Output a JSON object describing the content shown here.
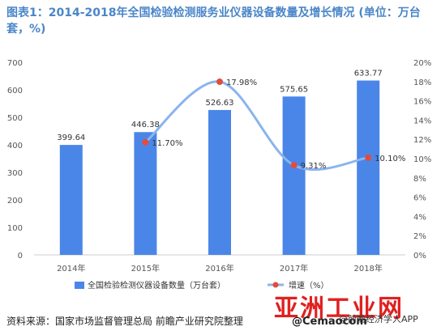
{
  "title": "图表1：2014-2018年全国检验检测服务业仪器设备数量及增长情况 (单位：万台套，%)",
  "source": "资料来源：国家市场监督管理总局 前瞻产业研究院整理",
  "watermark": {
    "logo": "亚洲工业网",
    "url": "@Cemaocom",
    "app": "@前瞻经济学人APP"
  },
  "colors": {
    "bar": "#4a86e8",
    "line": "#8ab4ee",
    "marker": "#e34c3c",
    "title": "#4a86c8"
  },
  "chart_data": {
    "type": "bar",
    "categories": [
      "2014年",
      "2015年",
      "2016年",
      "2017年",
      "2018年"
    ],
    "series": [
      {
        "name": "全国检验检测仪器设备数量（万台套）",
        "type": "bar",
        "axis": "left",
        "values": [
          399.64,
          446.38,
          526.63,
          575.65,
          633.77
        ],
        "labels": [
          "399.64",
          "446.38",
          "526.63",
          "575.65",
          "633.77"
        ]
      },
      {
        "name": "增速（%）",
        "type": "line",
        "axis": "right",
        "values": [
          null,
          11.7,
          17.98,
          9.31,
          10.1
        ],
        "labels": [
          "",
          "11.70%",
          "17.98%",
          "9.31%",
          "10.10%"
        ]
      }
    ],
    "y_left": {
      "min": 0,
      "max": 700,
      "ticks": [
        "0",
        "100",
        "200",
        "300",
        "400",
        "500",
        "600",
        "700"
      ]
    },
    "y_right": {
      "min": 0,
      "max": 20,
      "ticks": [
        "0%",
        "2%",
        "4%",
        "6%",
        "8%",
        "10%",
        "12%",
        "14%",
        "16%",
        "18%",
        "20%"
      ]
    },
    "legend_position": "bottom",
    "grid": false
  }
}
